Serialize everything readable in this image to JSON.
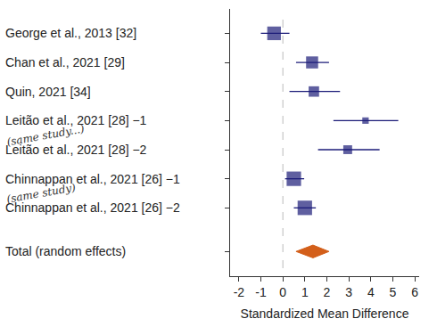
{
  "chart_data": {
    "type": "forest",
    "x_label": "Standardized Mean Difference",
    "xlim": [
      -2.4,
      6.2
    ],
    "xticks": [
      -2,
      -1,
      0,
      1,
      2,
      3,
      4,
      5,
      6
    ],
    "reference_line": 0,
    "color": "#1b1b78",
    "marker": "square",
    "studies": [
      {
        "label": "George et al., 2013 [32]",
        "estimate": -0.4,
        "ci_lower": -1.0,
        "ci_upper": 0.3,
        "weight": 17
      },
      {
        "label": "Chan et al., 2021 [29]",
        "estimate": 1.33,
        "ci_lower": 0.6,
        "ci_upper": 2.1,
        "weight": 15
      },
      {
        "label": "Quin, 2021 [34]",
        "estimate": 1.41,
        "ci_lower": 0.3,
        "ci_upper": 2.6,
        "weight": 13
      },
      {
        "label": "Leitão et al., 2021 [28] −1",
        "estimate": 3.76,
        "ci_lower": 2.3,
        "ci_upper": 5.25,
        "weight": 8,
        "note": "(same study...)"
      },
      {
        "label": "Leitão et al., 2021 [28] −2",
        "estimate": 2.95,
        "ci_lower": 1.6,
        "ci_upper": 4.4,
        "weight": 11
      },
      {
        "label": "Chinnappan et al., 2021 [26] −1",
        "estimate": 0.5,
        "ci_lower": 0.1,
        "ci_upper": 0.97,
        "weight": 18,
        "note": "(same study)"
      },
      {
        "label": "Chinnappan et al., 2021 [26] −2",
        "estimate": 1.0,
        "ci_lower": 0.5,
        "ci_upper": 1.5,
        "weight": 18
      }
    ],
    "total": {
      "label": "Total (random effects)",
      "estimate": 1.37,
      "ci_lower": 0.6,
      "ci_upper": 2.1,
      "color": "#d35f1a",
      "marker": "diamond"
    }
  }
}
